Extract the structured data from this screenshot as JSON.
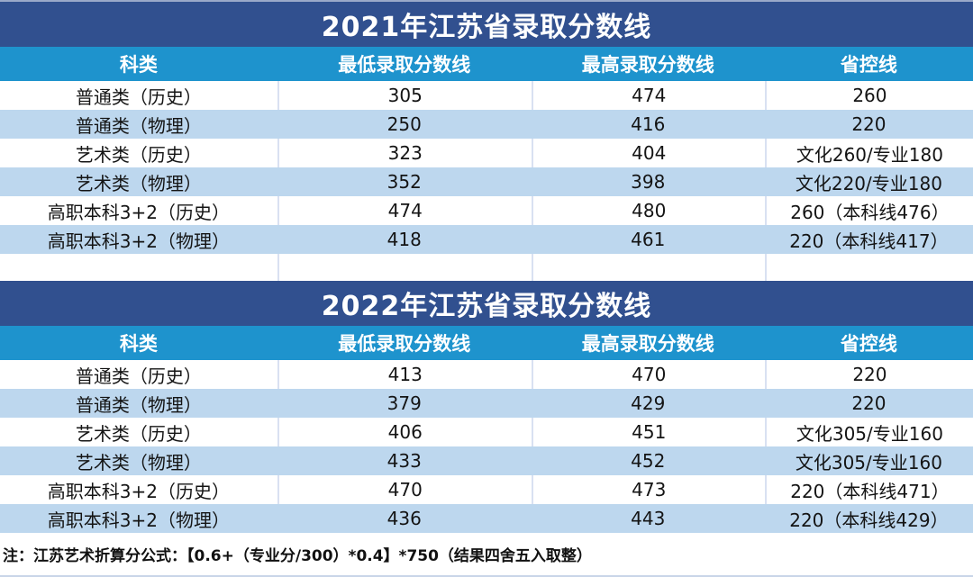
{
  "colors": {
    "title_bar": "#31508f",
    "header_row": "#1e93cd",
    "row_alternate": "#bdd7ee",
    "divider": "#d9e1f2"
  },
  "tables": [
    {
      "title": "2021年江苏省录取分数线",
      "headers": [
        "科类",
        "最低录取分数线",
        "最高录取分数线",
        "省控线"
      ],
      "rows": [
        {
          "category": "普通类（历史）",
          "min": "305",
          "max": "474",
          "control": "260"
        },
        {
          "category": "普通类（物理）",
          "min": "250",
          "max": "416",
          "control": "220"
        },
        {
          "category": "艺术类（历史）",
          "min": "323",
          "max": "404",
          "control": "文化260/专业180"
        },
        {
          "category": "艺术类（物理）",
          "min": "352",
          "max": "398",
          "control": "文化220/专业180"
        },
        {
          "category": "高职本科3+2（历史）",
          "min": "474",
          "max": "480",
          "control": "260（本科线476）"
        },
        {
          "category": "高职本科3+2（物理）",
          "min": "418",
          "max": "461",
          "control": "220（本科线417）"
        }
      ]
    },
    {
      "title": "2022年江苏省录取分数线",
      "headers": [
        "科类",
        "最低录取分数线",
        "最高录取分数线",
        "省控线"
      ],
      "rows": [
        {
          "category": "普通类（历史）",
          "min": "413",
          "max": "470",
          "control": "220"
        },
        {
          "category": "普通类（物理）",
          "min": "379",
          "max": "429",
          "control": "220"
        },
        {
          "category": "艺术类（历史）",
          "min": "406",
          "max": "451",
          "control": "文化305/专业160"
        },
        {
          "category": "艺术类（物理）",
          "min": "433",
          "max": "452",
          "control": "文化305/专业160"
        },
        {
          "category": "高职本科3+2（历史）",
          "min": "470",
          "max": "473",
          "control": "220（本科线471）"
        },
        {
          "category": "高职本科3+2（物理）",
          "min": "436",
          "max": "443",
          "control": "220（本科线429）"
        }
      ]
    }
  ],
  "page": {
    "footnote": "注：江苏艺术折算分公式：【0.6+（专业分/300）*0.4】*750（结果四舍五入取整）"
  }
}
